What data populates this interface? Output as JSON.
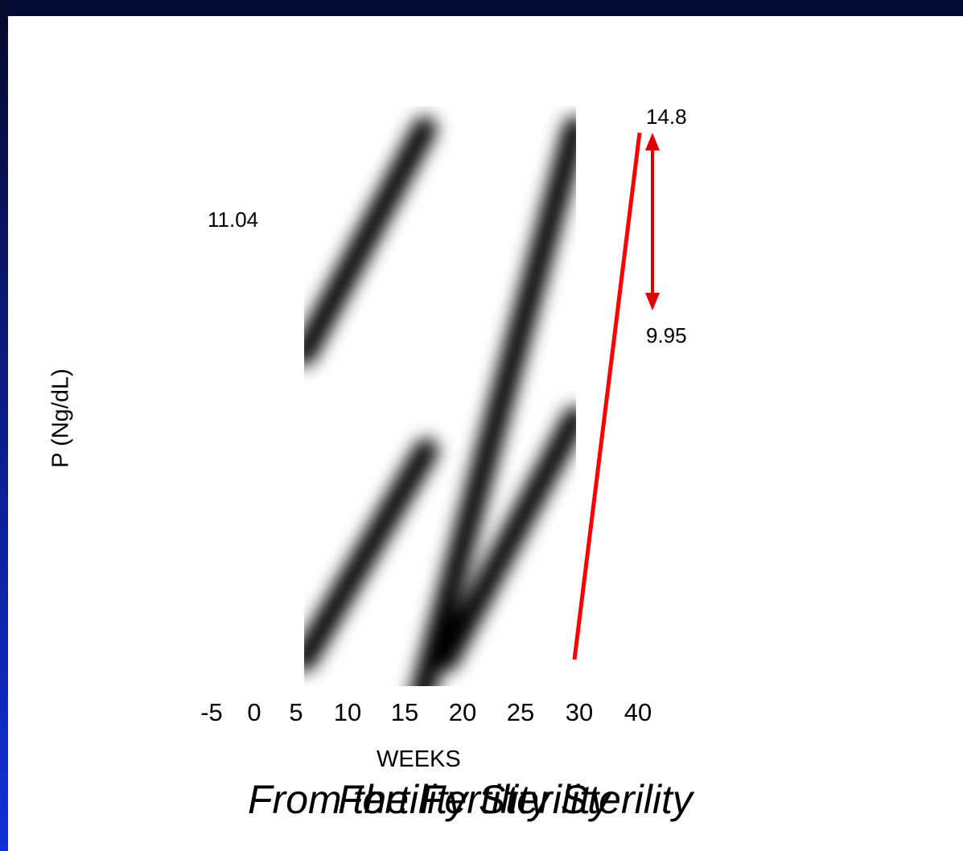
{
  "chart_data": {
    "type": "line",
    "xlabel": "WEEKS",
    "ylabel": "P  (Ng/dL)",
    "x_ticks": [
      "-5",
      "0",
      "5",
      "10",
      "15",
      "20",
      "25",
      "30",
      "40"
    ],
    "annotations": {
      "left_value": "11.04",
      "top_value": "14.8",
      "bottom_value": "9.95"
    },
    "series": [
      {
        "x": [
          30,
          40
        ],
        "y": [
          9.95,
          14.8
        ]
      }
    ],
    "colors": {
      "line": "#ff0000",
      "arrow": "#e00000"
    }
  },
  "captions": [
    "From the Fertility Sterility",
    "Fertility Sterility"
  ]
}
